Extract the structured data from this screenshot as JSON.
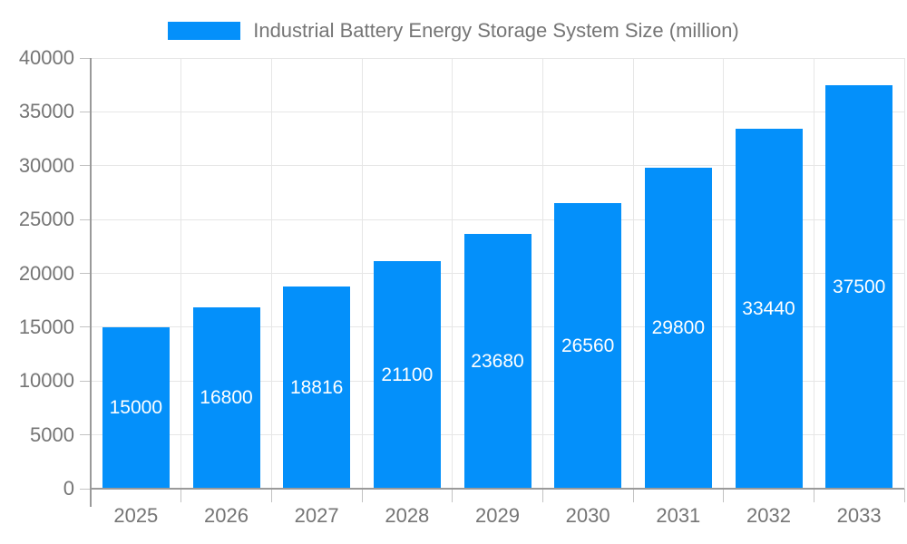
{
  "legend": {
    "label": "Industrial Battery Energy Storage System Size (million)"
  },
  "chart_data": {
    "type": "bar",
    "title": "Industrial Battery Energy Storage System Size (million)",
    "series": [
      {
        "name": "Industrial Battery Energy Storage System Size (million)",
        "values": [
          15000,
          16800,
          18816,
          21100,
          23680,
          26560,
          29800,
          33440,
          37500
        ]
      }
    ],
    "categories": [
      "2025",
      "2026",
      "2027",
      "2028",
      "2029",
      "2030",
      "2031",
      "2032",
      "2033"
    ],
    "xlabel": "",
    "ylabel": "",
    "ylim": [
      0,
      40000
    ],
    "yticks": [
      0,
      5000,
      10000,
      15000,
      20000,
      25000,
      30000,
      35000,
      40000
    ],
    "grid": true,
    "legend_position": "top-center",
    "bar_label_position": "inside-middle"
  },
  "colors": {
    "bar": "#0490fa",
    "grid": "#e6e6e6",
    "axis": "#9a9a9a",
    "tick": "#c2c2c2",
    "tick_text": "#757575",
    "legend_text": "#757575",
    "bar_label_text": "#ffffff",
    "background": "#ffffff"
  }
}
